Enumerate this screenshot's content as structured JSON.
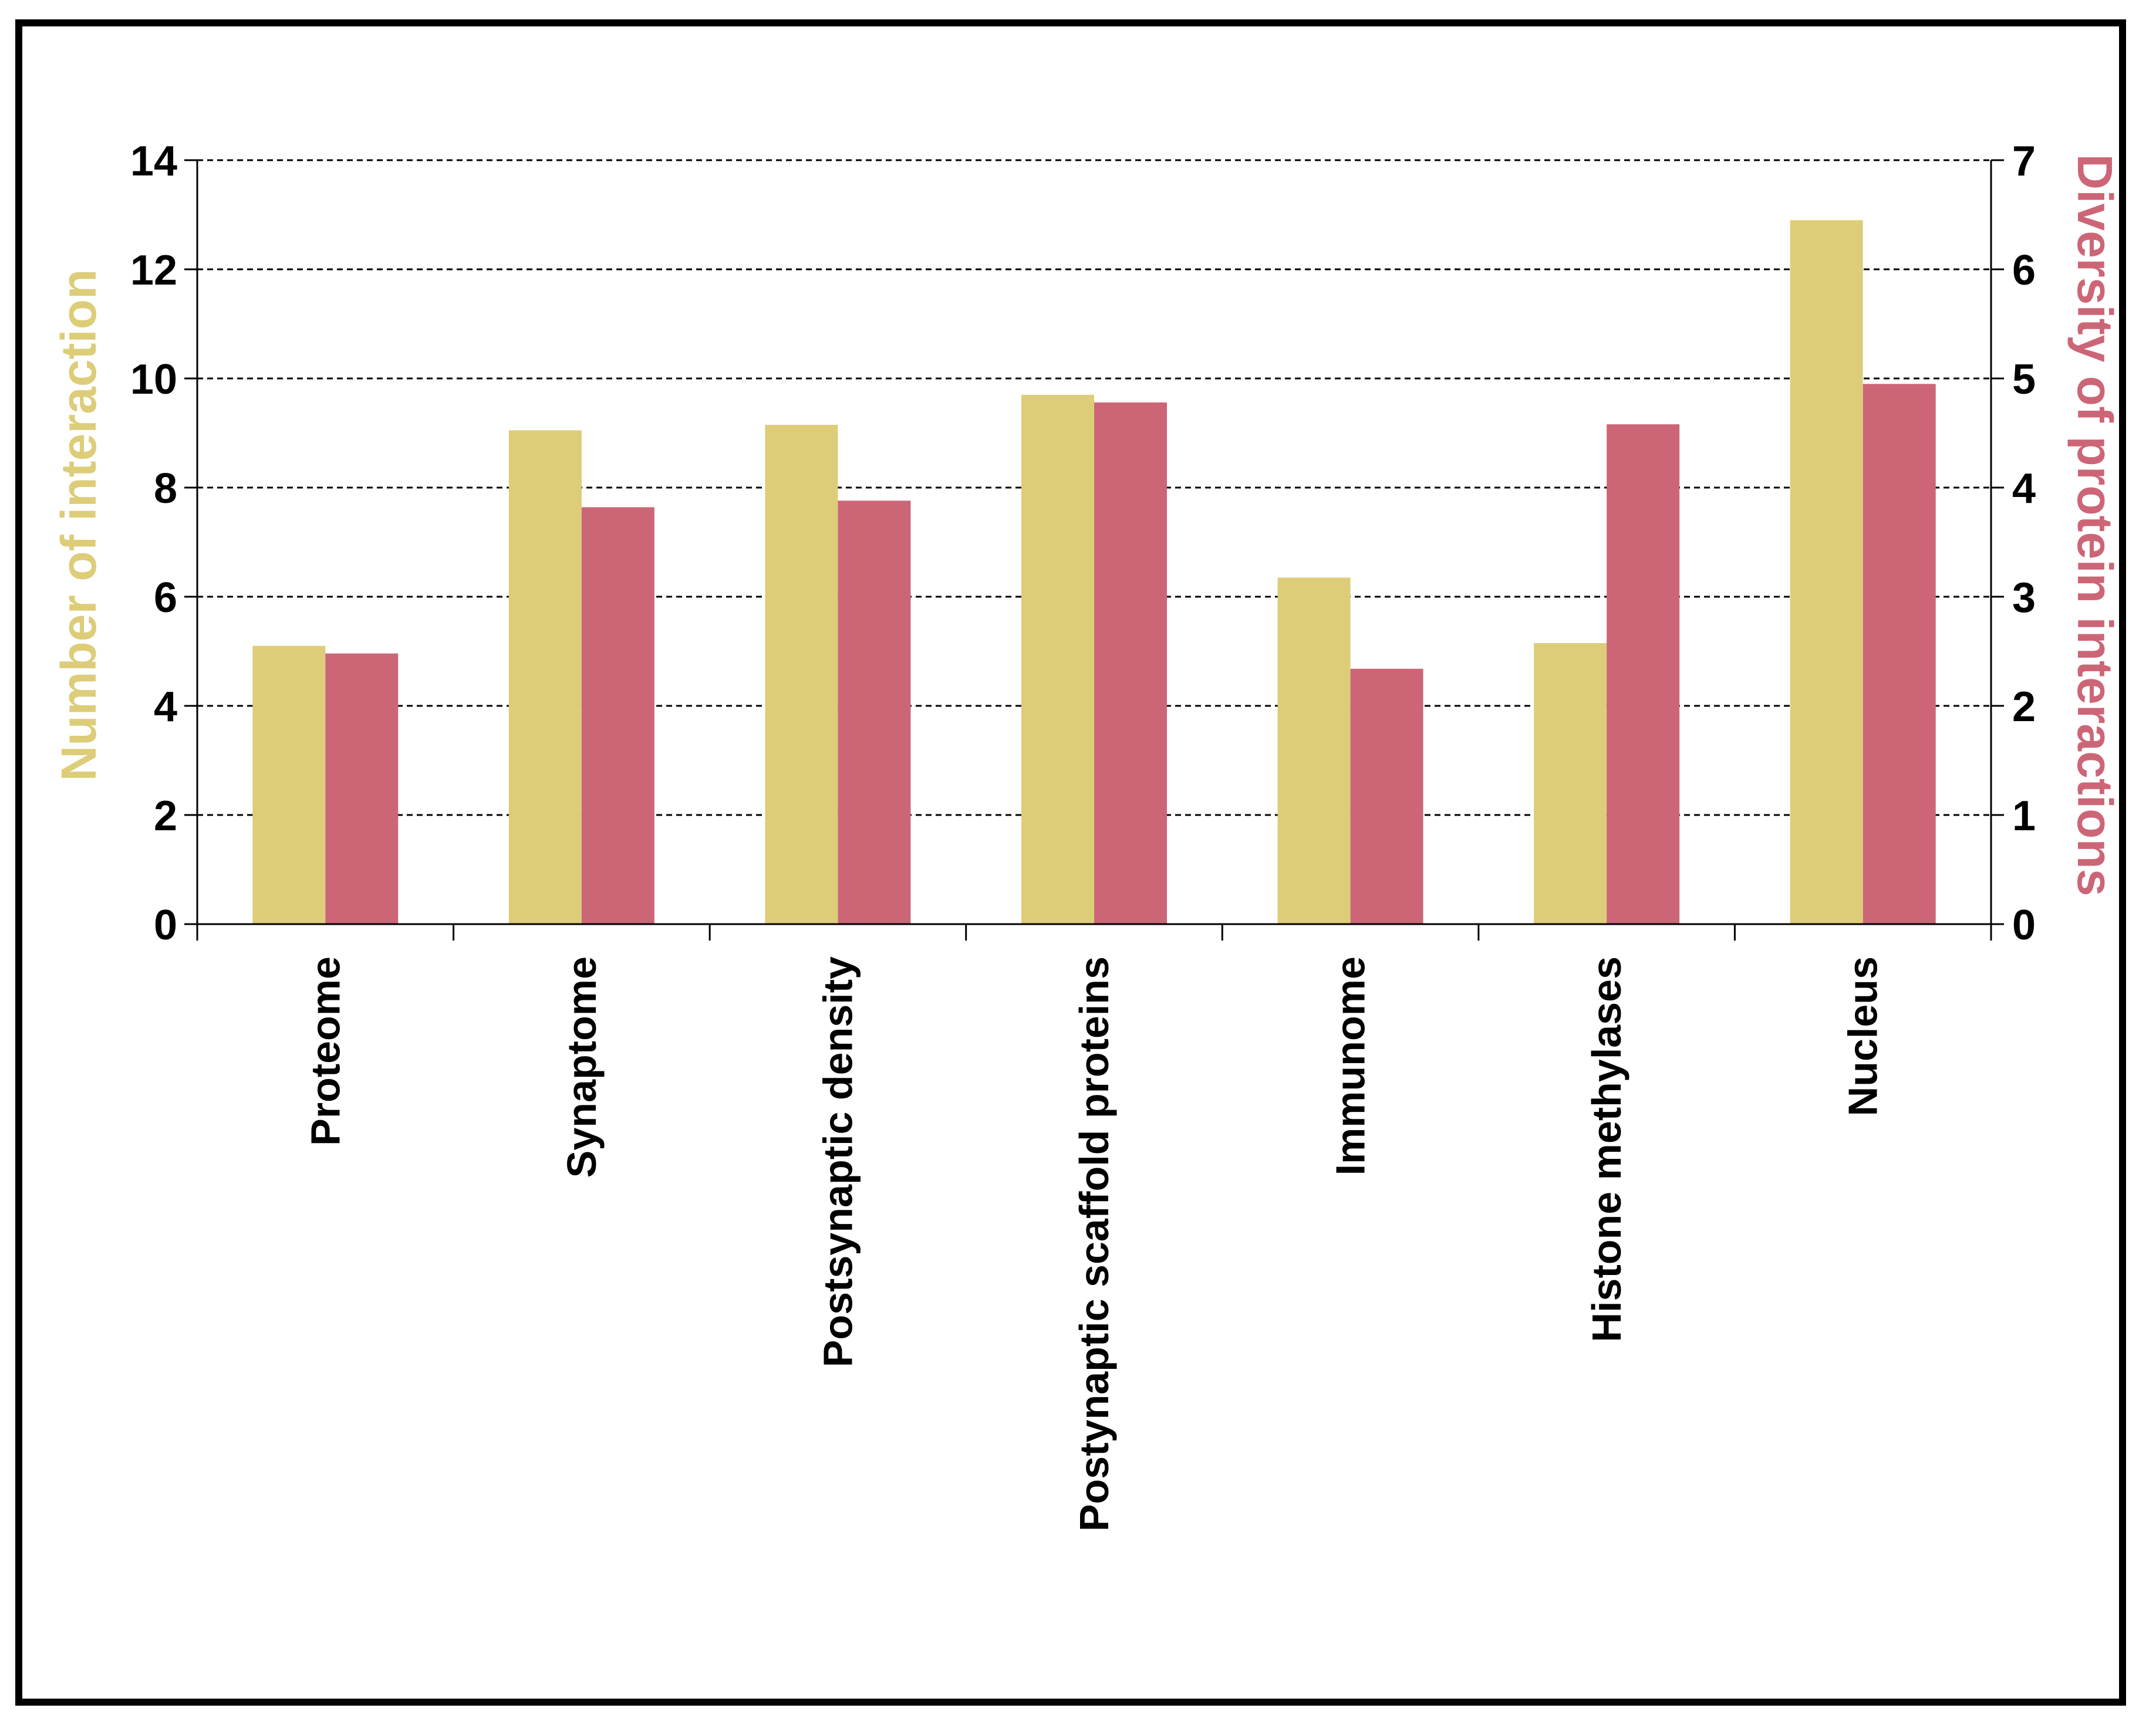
{
  "chart_data": {
    "type": "bar",
    "categories": [
      "Proteome",
      "Synaptome",
      "Postsynaptic density",
      "Postynaptic scaffold proteins",
      "Immunome",
      "Histone methylases",
      "Nucleus"
    ],
    "series": [
      {
        "name": "",
        "axis": "left",
        "values": [
          5.1,
          9.05,
          9.15,
          9.7,
          6.35,
          5.15,
          12.9
        ],
        "color": "#DDCD79"
      },
      {
        "name": "",
        "axis": "right",
        "values": [
          2.48,
          3.82,
          3.88,
          4.78,
          2.34,
          4.58,
          4.95
        ],
        "color": "#CC6677"
      }
    ],
    "ylabel_left": "Number of interaction",
    "ylabel_right": "Diversity of protein interactions",
    "ylabel_left_color": "#DDCD79",
    "ylabel_right_color": "#CC6677",
    "ylim_left": [
      0,
      14
    ],
    "ylim_right": [
      0,
      7
    ],
    "yticks_left": [
      "0",
      "2",
      "4",
      "6",
      "8",
      "10",
      "12",
      "14"
    ],
    "yticks_right": [
      "0",
      "1",
      "2",
      "3",
      "4",
      "5",
      "6",
      "7"
    ],
    "grid": "horizontal dashed",
    "legend": "none"
  }
}
